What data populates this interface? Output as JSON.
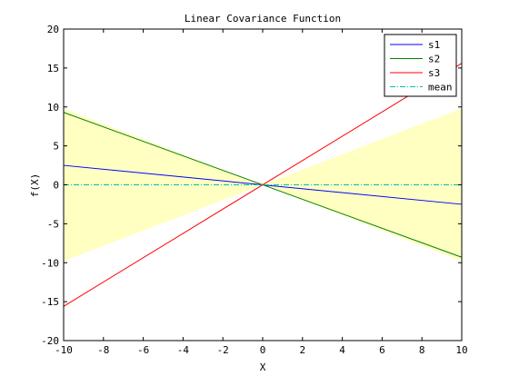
{
  "chart_data": {
    "type": "line",
    "title": "Linear Covariance Function",
    "xlabel": "X",
    "ylabel": "f(X)",
    "xlim": [
      -10,
      10
    ],
    "ylim": [
      -20,
      20
    ],
    "xticks": [
      -10,
      -8,
      -6,
      -4,
      -2,
      0,
      2,
      4,
      6,
      8,
      10
    ],
    "yticks": [
      -20,
      -15,
      -10,
      -5,
      0,
      5,
      10,
      15,
      20
    ],
    "grid": false,
    "legend_position": "top-right",
    "confidence_band": {
      "color": "#ffffc2",
      "x": [
        -10,
        0,
        10
      ],
      "upper": [
        9.8,
        0,
        9.8
      ],
      "lower": [
        -9.8,
        0,
        -9.8
      ]
    },
    "series": [
      {
        "name": "s1",
        "color": "#0000ff",
        "style": "solid",
        "x": [
          -10,
          10
        ],
        "y": [
          2.5,
          -2.5
        ]
      },
      {
        "name": "s2",
        "color": "#008000",
        "style": "solid",
        "x": [
          -10,
          10
        ],
        "y": [
          9.3,
          -9.3
        ]
      },
      {
        "name": "s3",
        "color": "#ff0000",
        "style": "solid",
        "x": [
          -10,
          10
        ],
        "y": [
          -15.6,
          15.6
        ]
      },
      {
        "name": "mean",
        "color": "#00bfbf",
        "style": "dashdot",
        "x": [
          -10,
          10
        ],
        "y": [
          0,
          0
        ]
      }
    ]
  }
}
